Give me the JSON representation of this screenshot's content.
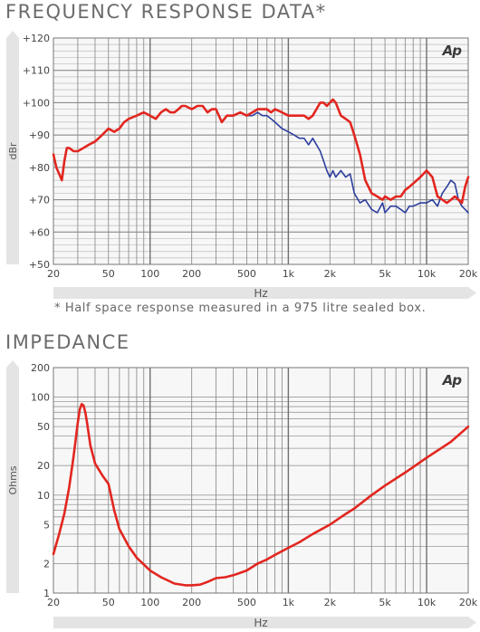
{
  "chart_data": [
    {
      "type": "line",
      "title": "FREQUENCY RESPONSE DATA*",
      "xlabel": "Hz",
      "ylabel": "dBr",
      "x_scale": "log",
      "xlim": [
        20,
        20000
      ],
      "ylim": [
        50,
        120
      ],
      "x_ticks": [
        "20",
        "50",
        "100",
        "200",
        "500",
        "1k",
        "2k",
        "5k",
        "10k",
        "20k"
      ],
      "y_ticks": [
        "+50",
        "+60",
        "+70",
        "+80",
        "+90",
        "+100",
        "+110",
        "+120"
      ],
      "logo": "Ap",
      "footnote": "* Half space response measured in a 975 litre sealed box.",
      "grid": true,
      "series": [
        {
          "color": "#2d3f9e",
          "x": [
            20,
            21,
            22,
            23,
            24,
            25,
            26,
            28,
            30,
            33,
            36,
            40,
            45,
            50,
            55,
            60,
            65,
            70,
            80,
            90,
            100,
            110,
            120,
            130,
            140,
            150,
            160,
            170,
            180,
            200,
            220,
            240,
            260,
            280,
            300,
            330,
            360,
            400,
            450,
            500,
            550,
            600,
            650,
            700,
            750,
            800,
            900,
            1000,
            1100,
            1200,
            1300,
            1400,
            1500,
            1700,
            1800,
            1900,
            2000,
            2100,
            2200,
            2400,
            2600,
            2800,
            3000,
            3300,
            3600,
            4000,
            4400,
            4800,
            5000,
            5500,
            6000,
            6500,
            7000,
            7500,
            8000,
            9000,
            10000,
            11000,
            12000,
            13000,
            14000,
            15000,
            16000,
            17000,
            18000,
            19000,
            20000
          ],
          "y": [
            84,
            80,
            78,
            76,
            82,
            86,
            86,
            85,
            85,
            86,
            87,
            88,
            90,
            92,
            91,
            92,
            94,
            95,
            96,
            97,
            96,
            95,
            97,
            98,
            97,
            97,
            98,
            99,
            99,
            98,
            99,
            99,
            97,
            98,
            98,
            94,
            96,
            96,
            97,
            96,
            96,
            97,
            96,
            96,
            95,
            94,
            92,
            91,
            90,
            89,
            89,
            87,
            89,
            85,
            82,
            79,
            77,
            79,
            77,
            79,
            77,
            78,
            72,
            69,
            70,
            67,
            66,
            69,
            66,
            68,
            68,
            67,
            66,
            68,
            68,
            69,
            69,
            70,
            68,
            72,
            74,
            76,
            75,
            70,
            68,
            67,
            66
          ]
        },
        {
          "color": "#e2261f",
          "x": [
            20,
            21,
            22,
            23,
            24,
            25,
            26,
            28,
            30,
            33,
            36,
            40,
            45,
            50,
            55,
            60,
            65,
            70,
            80,
            90,
            100,
            110,
            120,
            130,
            140,
            150,
            160,
            170,
            180,
            200,
            220,
            240,
            260,
            280,
            300,
            330,
            360,
            400,
            450,
            500,
            550,
            600,
            650,
            700,
            750,
            800,
            900,
            1000,
            1100,
            1200,
            1300,
            1400,
            1500,
            1700,
            1800,
            1900,
            2000,
            2100,
            2200,
            2400,
            2600,
            2800,
            3000,
            3300,
            3600,
            4000,
            4400,
            4800,
            5000,
            5500,
            6000,
            6500,
            7000,
            7500,
            8000,
            9000,
            10000,
            11000,
            12000,
            13000,
            14000,
            15000,
            16000,
            17000,
            18000,
            19000,
            20000
          ],
          "y": [
            84,
            80,
            78,
            76,
            82,
            86,
            86,
            85,
            85,
            86,
            87,
            88,
            90,
            92,
            91,
            92,
            94,
            95,
            96,
            97,
            96,
            95,
            97,
            98,
            97,
            97,
            98,
            99,
            99,
            98,
            99,
            99,
            97,
            98,
            98,
            94,
            96,
            96,
            97,
            96,
            97,
            98,
            98,
            98,
            97,
            98,
            97,
            96,
            96,
            96,
            96,
            95,
            96,
            100,
            100,
            99,
            100,
            101,
            100,
            96,
            95,
            94,
            90,
            84,
            76,
            72,
            71,
            70,
            71,
            70,
            71,
            71,
            73,
            74,
            75,
            77,
            79,
            77,
            71,
            70,
            69,
            70,
            71,
            70,
            69,
            74,
            77
          ]
        }
      ]
    },
    {
      "type": "line",
      "title": "IMPEDANCE",
      "xlabel": "Hz",
      "ylabel": "Ohms",
      "x_scale": "log",
      "y_scale": "log",
      "xlim": [
        20,
        20000
      ],
      "ylim": [
        1,
        200
      ],
      "x_ticks": [
        "20",
        "50",
        "100",
        "200",
        "500",
        "1k",
        "2k",
        "5k",
        "10k",
        "20k"
      ],
      "y_ticks": [
        "1",
        "2",
        "5",
        "10",
        "20",
        "50",
        "100",
        "200"
      ],
      "logo": "Ap",
      "grid": true,
      "series": [
        {
          "color": "#e2261f",
          "x": [
            20,
            22,
            24,
            26,
            28,
            30,
            31,
            32,
            33,
            34,
            35,
            37,
            40,
            45,
            50,
            55,
            60,
            70,
            80,
            100,
            120,
            150,
            180,
            200,
            230,
            260,
            300,
            350,
            400,
            500,
            600,
            700,
            800,
            1000,
            1200,
            1500,
            2000,
            2500,
            3000,
            4000,
            5000,
            7000,
            10000,
            15000,
            20000
          ],
          "y": [
            2.5,
            4.0,
            6.5,
            12,
            25,
            55,
            75,
            85,
            82,
            70,
            55,
            32,
            21,
            16,
            13,
            7,
            4.5,
            3.0,
            2.3,
            1.7,
            1.45,
            1.25,
            1.2,
            1.2,
            1.22,
            1.3,
            1.42,
            1.45,
            1.52,
            1.7,
            2.0,
            2.2,
            2.45,
            2.9,
            3.3,
            4.0,
            5.0,
            6.2,
            7.3,
            10,
            12.5,
            17,
            24,
            35,
            50
          ]
        }
      ]
    }
  ]
}
